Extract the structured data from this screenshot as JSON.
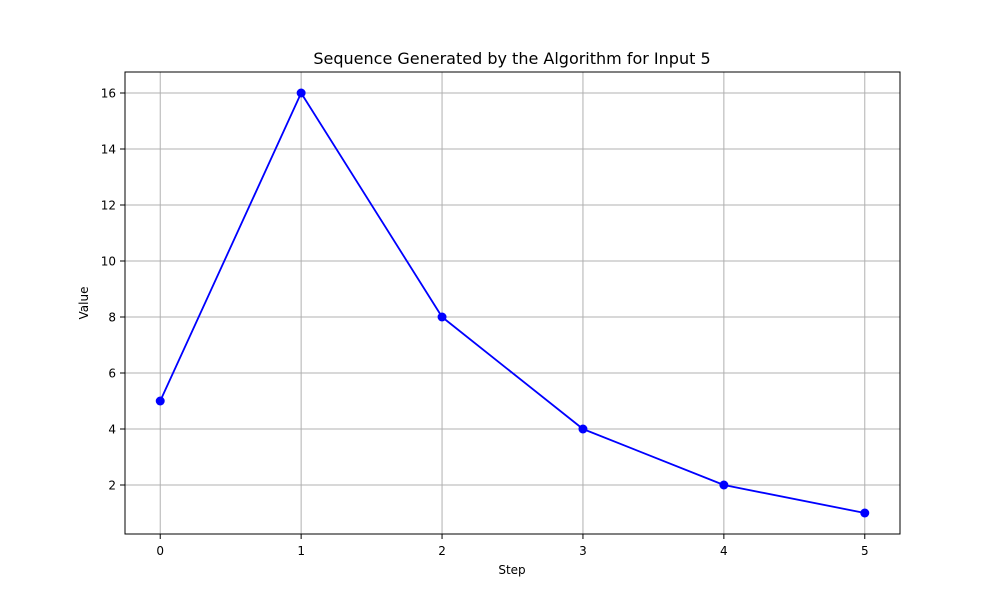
{
  "chart_data": {
    "type": "line",
    "title": "Sequence Generated by the Algorithm for Input 5",
    "xlabel": "Step",
    "ylabel": "Value",
    "x": [
      0,
      1,
      2,
      3,
      4,
      5
    ],
    "series": [
      {
        "values": [
          5,
          16,
          8,
          4,
          2,
          1
        ],
        "color": "#0000ff",
        "marker": "circle"
      }
    ],
    "xlim": [
      -0.25,
      5.25
    ],
    "ylim": [
      0.25,
      16.75
    ],
    "xticks": [
      0,
      1,
      2,
      3,
      4,
      5
    ],
    "yticks": [
      2,
      4,
      6,
      8,
      10,
      12,
      14,
      16
    ],
    "grid": true,
    "colors": {
      "grid": "#b0b0b0",
      "axis": "#000000"
    }
  }
}
